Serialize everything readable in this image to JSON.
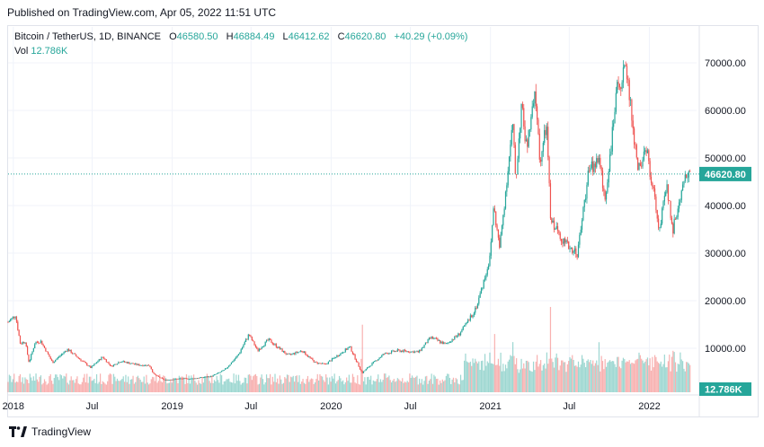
{
  "published": "Published on TradingView.com, Apr 05, 2022 11:51 UTC",
  "legend": {
    "symbol": "Bitcoin / TetherUS, 1D, BINANCE",
    "open_label": "O",
    "open": "46580.50",
    "high_label": "H",
    "high": "46884.49",
    "low_label": "L",
    "low": "46412.62",
    "close_label": "C",
    "close": "46620.80",
    "change": "+40.29 (+0.09%)",
    "vol_label": "Vol",
    "vol": "12.786K"
  },
  "footer": {
    "brand": "TradingView",
    "logo_icon": "tradingview-logo-icon"
  },
  "colors": {
    "up": "#26a69a",
    "down": "#ef5350",
    "grid": "#f0f3fa",
    "last_line": "#26a69a"
  },
  "chart_data": {
    "type": "candlestick",
    "title": "Bitcoin / TetherUS, 1D, BINANCE",
    "y_scale": "linear",
    "ylim": [
      0,
      75000
    ],
    "y_ticks": [
      10000,
      20000,
      30000,
      40000,
      50000,
      60000,
      70000
    ],
    "y_tick_labels": [
      "10000.00",
      "20000.00",
      "30000.00",
      "40000.00",
      "50000.00",
      "60000.00",
      "70000.00"
    ],
    "x_tick_labels": [
      "2018",
      "Jul",
      "2019",
      "Jul",
      "2020",
      "Jul",
      "2021",
      "Jul",
      "2022"
    ],
    "x_tick_dates": [
      "2018-01-01",
      "2018-07-01",
      "2019-01-01",
      "2019-07-01",
      "2020-01-01",
      "2020-07-01",
      "2021-01-01",
      "2021-07-01",
      "2022-01-01"
    ],
    "last_price": 46620.8,
    "last_price_label": "46620.80",
    "volume_label": "12.786K",
    "grid": true,
    "price_path": [
      [
        "2017-12-20",
        15500
      ],
      [
        "2018-01-06",
        17000
      ],
      [
        "2018-01-17",
        11000
      ],
      [
        "2018-01-28",
        11500
      ],
      [
        "2018-02-06",
        7000
      ],
      [
        "2018-02-20",
        11200
      ],
      [
        "2018-03-05",
        11500
      ],
      [
        "2018-04-01",
        7000
      ],
      [
        "2018-05-05",
        9800
      ],
      [
        "2018-06-28",
        5900
      ],
      [
        "2018-07-25",
        8200
      ],
      [
        "2018-08-14",
        6200
      ],
      [
        "2018-09-04",
        7300
      ],
      [
        "2018-10-15",
        6500
      ],
      [
        "2018-11-10",
        6400
      ],
      [
        "2018-11-20",
        4500
      ],
      [
        "2018-12-15",
        3300
      ],
      [
        "2019-01-15",
        3600
      ],
      [
        "2019-02-15",
        3600
      ],
      [
        "2019-04-01",
        4100
      ],
      [
        "2019-05-01",
        5400
      ],
      [
        "2019-06-01",
        8500
      ],
      [
        "2019-06-26",
        12900
      ],
      [
        "2019-07-16",
        9500
      ],
      [
        "2019-08-10",
        11800
      ],
      [
        "2019-09-24",
        8500
      ],
      [
        "2019-10-26",
        9500
      ],
      [
        "2019-11-25",
        7000
      ],
      [
        "2019-12-18",
        6600
      ],
      [
        "2020-02-13",
        10300
      ],
      [
        "2020-03-12",
        4800
      ],
      [
        "2020-04-01",
        6500
      ],
      [
        "2020-05-01",
        8800
      ],
      [
        "2020-06-01",
        9500
      ],
      [
        "2020-07-20",
        9200
      ],
      [
        "2020-08-17",
        12300
      ],
      [
        "2020-09-20",
        10800
      ],
      [
        "2020-10-20",
        12900
      ],
      [
        "2020-11-10",
        15500
      ],
      [
        "2020-12-01",
        19000
      ],
      [
        "2020-12-31",
        29000
      ],
      [
        "2021-01-08",
        40000
      ],
      [
        "2021-01-22",
        31000
      ],
      [
        "2021-02-21",
        57000
      ],
      [
        "2021-02-28",
        45000
      ],
      [
        "2021-03-13",
        61000
      ],
      [
        "2021-03-25",
        52000
      ],
      [
        "2021-04-14",
        63500
      ],
      [
        "2021-04-25",
        49000
      ],
      [
        "2021-05-10",
        57000
      ],
      [
        "2021-05-19",
        37000
      ],
      [
        "2021-06-22",
        32000
      ],
      [
        "2021-07-20",
        30000
      ],
      [
        "2021-08-14",
        47000
      ],
      [
        "2021-09-07",
        50000
      ],
      [
        "2021-09-21",
        41000
      ],
      [
        "2021-10-20",
        65000
      ],
      [
        "2021-11-10",
        68500
      ],
      [
        "2021-12-04",
        48000
      ],
      [
        "2021-12-27",
        51000
      ],
      [
        "2022-01-24",
        35000
      ],
      [
        "2022-02-10",
        44000
      ],
      [
        "2022-02-24",
        35000
      ],
      [
        "2022-03-28",
        47500
      ],
      [
        "2022-04-05",
        46620
      ]
    ],
    "volume_spikes": [
      [
        "2020-03-12",
        1.0
      ],
      [
        "2021-05-19",
        0.95
      ],
      [
        "2021-01-11",
        0.7
      ],
      [
        "2021-02-22",
        0.65
      ],
      [
        "2021-09-07",
        0.6
      ],
      [
        "2021-12-04",
        0.6
      ],
      [
        "2022-01-21",
        0.45
      ],
      [
        "2022-02-24",
        0.5
      ]
    ]
  }
}
